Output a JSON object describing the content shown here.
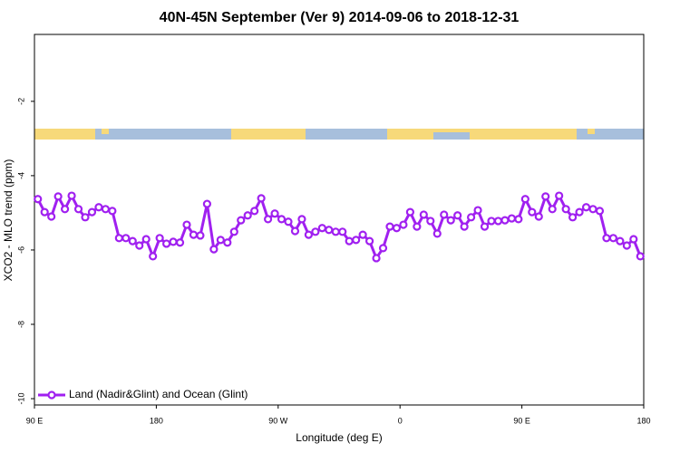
{
  "chart_data": {
    "type": "line",
    "title": "40N-45N September (Ver 9)   2014-09-06 to 2018-12-31",
    "x_label": "Longitude (deg E)",
    "y_label": "XCO2 - MLO trend (ppm)",
    "xlim": [
      90,
      540
    ],
    "ylim": [
      -10.17,
      -0.2
    ],
    "xticks": [
      {
        "value": 90,
        "label": "90 E"
      },
      {
        "value": 180,
        "label": "180"
      },
      {
        "value": 270,
        "label": "90 W"
      },
      {
        "value": 360,
        "label": "0"
      },
      {
        "value": 450,
        "label": "90 E"
      },
      {
        "value": 540,
        "label": "180"
      }
    ],
    "yticks": [
      -10,
      -8,
      -6,
      -4,
      -2
    ],
    "legend": "bottom-left",
    "x": [
      92.5,
      97.5,
      102.5,
      107.5,
      112.5,
      117.5,
      122.5,
      127.5,
      132.5,
      137.5,
      142.5,
      147.5,
      152.5,
      157.5,
      162.5,
      167.5,
      172.5,
      177.5,
      182.5,
      187.5,
      192.5,
      197.5,
      202.5,
      207.5,
      212.5,
      217.5,
      222.5,
      227.5,
      232.5,
      237.5,
      242.5,
      247.5,
      252.5,
      257.5,
      262.5,
      267.5,
      272.5,
      277.5,
      282.5,
      287.5,
      292.5,
      297.5,
      302.5,
      307.5,
      312.5,
      317.5,
      322.5,
      327.5,
      332.5,
      337.5,
      342.5,
      347.5,
      352.5,
      357.5,
      362.5,
      367.5,
      372.5,
      377.5,
      382.5,
      387.5,
      392.5,
      397.5,
      402.5,
      407.5,
      412.5,
      417.5,
      422.5,
      427.5,
      432.5,
      437.5,
      442.5,
      447.5,
      452.5,
      457.5,
      462.5,
      467.5,
      472.5,
      477.5,
      482.5,
      487.5,
      492.5,
      497.5,
      502.5,
      507.5,
      512.5,
      517.5,
      522.5,
      527.5,
      532.5,
      537.5
    ],
    "series": [
      {
        "name": "Land (Nadir&Glint) and Ocean (Glint)",
        "color": "#a020f0",
        "values": [
          -4.63,
          -4.98,
          -5.1,
          -4.56,
          -4.9,
          -4.54,
          -4.9,
          -5.12,
          -4.98,
          -4.85,
          -4.9,
          -4.95,
          -5.68,
          -5.68,
          -5.76,
          -5.88,
          -5.71,
          -6.17,
          -5.68,
          -5.83,
          -5.78,
          -5.8,
          -5.32,
          -5.59,
          -5.61,
          -4.76,
          -5.98,
          -5.73,
          -5.8,
          -5.51,
          -5.2,
          -5.07,
          -4.95,
          -4.61,
          -5.17,
          -5.02,
          -5.17,
          -5.24,
          -5.49,
          -5.17,
          -5.59,
          -5.51,
          -5.41,
          -5.46,
          -5.51,
          -5.51,
          -5.76,
          -5.73,
          -5.59,
          -5.76,
          -6.22,
          -5.95,
          -5.37,
          -5.41,
          -5.32,
          -4.98,
          -5.37,
          -5.05,
          -5.22,
          -5.56,
          -5.05,
          -5.2,
          -5.07,
          -5.37,
          -5.12,
          -4.93,
          -5.37,
          -5.22,
          -5.22,
          -5.2,
          -5.15,
          -5.17,
          -4.63,
          -4.98,
          -5.1,
          -4.56,
          -4.9,
          -4.54,
          -4.9,
          -5.12,
          -4.98,
          -4.85,
          -4.9,
          -4.95,
          -5.68,
          -5.68,
          -5.76,
          -5.88,
          -5.71,
          -6.17
        ]
      }
    ]
  }
}
